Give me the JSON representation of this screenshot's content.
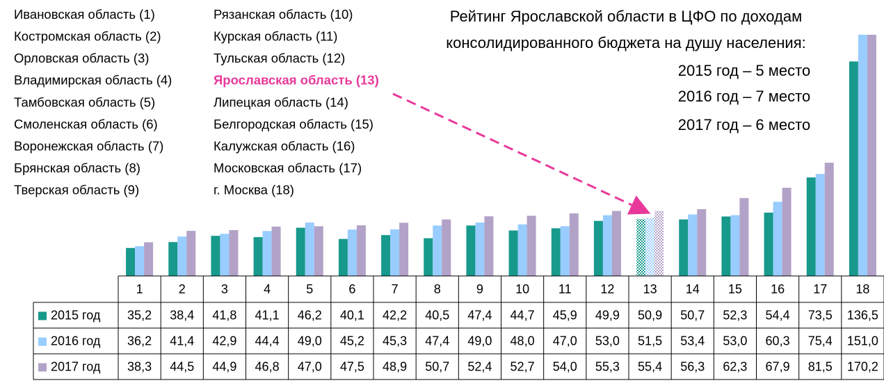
{
  "chart_data": {
    "type": "bar",
    "regions": [
      "Ивановская область (1)",
      "Костромская область (2)",
      "Орловская область (3)",
      "Владимирская область (4)",
      "Тамбовская область (5)",
      "Смоленская область (6)",
      "Воронежская область (7)",
      "Брянская область (8)",
      "Тверская область (9)",
      "Рязанская область (10)",
      "Курская область (11)",
      "Тульская область (12)",
      "Ярославская область (13)",
      "Липецкая область (14)",
      "Белгородская область (15)",
      "Калужская область (16)",
      "Московская область (17)",
      "г. Москва (18)"
    ],
    "annotation": [
      "Рейтинг Ярославской области в ЦФО по доходам",
      "консолидированного бюджета на душу населения:",
      "2015 год – 5 место",
      "2016 год – 7 место",
      "2017 год – 6 место"
    ],
    "categories": [
      "1",
      "2",
      "3",
      "4",
      "5",
      "6",
      "7",
      "8",
      "9",
      "10",
      "11",
      "12",
      "13",
      "14",
      "15",
      "16",
      "17",
      "18"
    ],
    "series": [
      {
        "name": "2015 год",
        "color": "#17998c",
        "values": [
          35.2,
          38.4,
          41.8,
          41.1,
          46.2,
          40.1,
          42.2,
          40.5,
          47.4,
          44.7,
          45.9,
          49.9,
          50.9,
          50.7,
          52.3,
          54.4,
          73.5,
          136.5
        ],
        "value_labels": [
          "35,2",
          "38,4",
          "41,8",
          "41,1",
          "46,2",
          "40,1",
          "42,2",
          "40,5",
          "47,4",
          "44,7",
          "45,9",
          "49,9",
          "50,9",
          "50,7",
          "52,3",
          "54,4",
          "73,5",
          "136,5"
        ]
      },
      {
        "name": "2016 год",
        "color": "#99ccff",
        "values": [
          36.2,
          41.4,
          42.9,
          44.4,
          49.0,
          45.2,
          45.3,
          47.4,
          49.0,
          48.0,
          47.0,
          53.0,
          51.5,
          53.4,
          53.0,
          60.3,
          75.4,
          151.0
        ],
        "value_labels": [
          "36,2",
          "41,4",
          "42,9",
          "44,4",
          "49,0",
          "45,2",
          "45,3",
          "47,4",
          "49,0",
          "48,0",
          "47,0",
          "53,0",
          "51,5",
          "53,4",
          "53,0",
          "60,3",
          "75,4",
          "151,0"
        ]
      },
      {
        "name": "2017 год",
        "color": "#b3a2c7",
        "values": [
          38.3,
          44.5,
          44.9,
          46.8,
          47.0,
          47.5,
          48.9,
          50.7,
          52.4,
          52.7,
          54.0,
          55.3,
          55.4,
          56.3,
          62.3,
          67.9,
          81.5,
          170.2
        ],
        "value_labels": [
          "38,3",
          "44,5",
          "44,9",
          "46,8",
          "47,0",
          "47,5",
          "48,9",
          "50,7",
          "52,4",
          "52,7",
          "54,0",
          "55,3",
          "55,4",
          "56,3",
          "62,3",
          "67,9",
          "81,5",
          "170,2"
        ]
      }
    ],
    "ylim": [
      20,
      151
    ],
    "highlight_index": 12,
    "highlight_color": "#e8399b"
  }
}
